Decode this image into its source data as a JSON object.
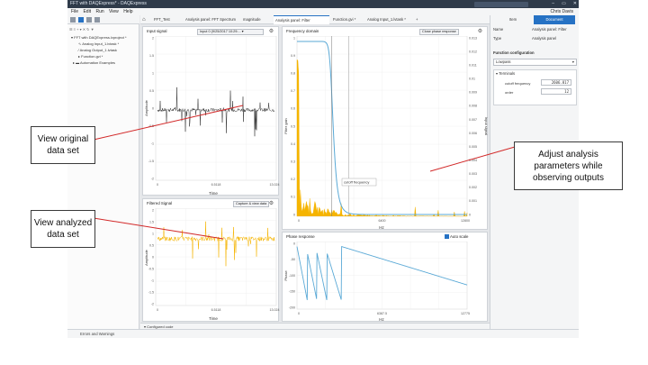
{
  "window": {
    "title": "FFT with DAQExpress* - DAQExpress",
    "search_placeholder": "Search",
    "controls": [
      "–",
      "▭",
      "✕"
    ]
  },
  "menu": {
    "items": [
      "File",
      "Edit",
      "Run",
      "View",
      "Help"
    ],
    "user": "Chris Davis"
  },
  "tree": {
    "items": [
      "FFT with DAQExpress.lvproject *",
      "Analog Input_1.lvtask *",
      "Analog Output_1.lvtask",
      "Function.gvi *",
      "Automation Examples"
    ]
  },
  "tabs": [
    "FFT_Test",
    "Analysis panel: FFT Spectrum",
    "magnitude",
    "Analysis panel: Filter",
    "Function.gvi *",
    "Analog Input_1.lvtask *",
    "+"
  ],
  "input_panel": {
    "title": "Input signal",
    "dropdown": "Input 0 (9/25/2017 10:29:...",
    "xlabel": "Time",
    "ylabel": "Amplitude",
    "x_ticks": [
      "0",
      "6.5118",
      "13.024"
    ],
    "y_ticks": [
      "2",
      "1.5",
      "1",
      "0.5",
      "0",
      "-0.5",
      "-1",
      "-1.5",
      "-2"
    ]
  },
  "filtered_panel": {
    "title": "Filtered Signal",
    "button": "Capture & view data",
    "xlabel": "Time",
    "ylabel": "Amplitude",
    "x_ticks": [
      "0",
      "6.5118",
      "13.024"
    ],
    "y_ticks": [
      "2",
      "1.5",
      "1",
      "0.5",
      "0",
      "-0.5",
      "-1",
      "-1.5",
      "-2"
    ]
  },
  "freq_panel": {
    "title": "Frequency domain",
    "button": "Close phase response",
    "xlabel": "Hz",
    "ylabel": "Filter gain",
    "y2label": "Input signal",
    "cursor_label": "cutoff frequency",
    "x_ticks": [
      "0",
      "6400",
      "12800"
    ],
    "y_ticks": [
      "1",
      "0.9",
      "0.8",
      "0.7",
      "0.6",
      "0.5",
      "0.4",
      "0.3",
      "0.2",
      "0.1",
      "0"
    ],
    "y2_ticks": [
      "0.013",
      "0.012",
      "0.011",
      "0.01",
      "0.009",
      "0.008",
      "0.007",
      "0.006",
      "0.005",
      "0.004",
      "0.003",
      "0.002",
      "0.001",
      "0"
    ]
  },
  "phase_panel": {
    "title": "Phase response",
    "autoscale": "Auto scale",
    "xlabel": "Hz",
    "ylabel": "Phase",
    "x_ticks": [
      "0",
      "6387.5",
      "12775"
    ],
    "y_ticks": [
      "0",
      "-50",
      "-100",
      "-150",
      "-200"
    ]
  },
  "right_panel": {
    "tabs": [
      "Item",
      "Document"
    ],
    "name_label": "Name",
    "name_value": "Analysis panel: Filter",
    "type_label": "Type",
    "type_value": "Analysis panel",
    "section": "Function configuration",
    "function": "Lowpass",
    "terminals_label": "Terminals",
    "cutoff_label": "cutoff frequency",
    "cutoff_value": "2606.817",
    "order_label": "order",
    "order_value": "12"
  },
  "configured_code": "Configured code",
  "errors_tab": "Errors and Warnings",
  "callouts": {
    "original": "View original data set",
    "analyzed": "View analyzed data set",
    "adjust": "Adjust analysis parameters while observing outputs"
  },
  "colors": {
    "accent": "#2672c4",
    "input_signal": "#3b3b3b",
    "filtered_signal": "#f5b400",
    "gain": "#5aa9d6",
    "callout_line": "#d22828"
  }
}
